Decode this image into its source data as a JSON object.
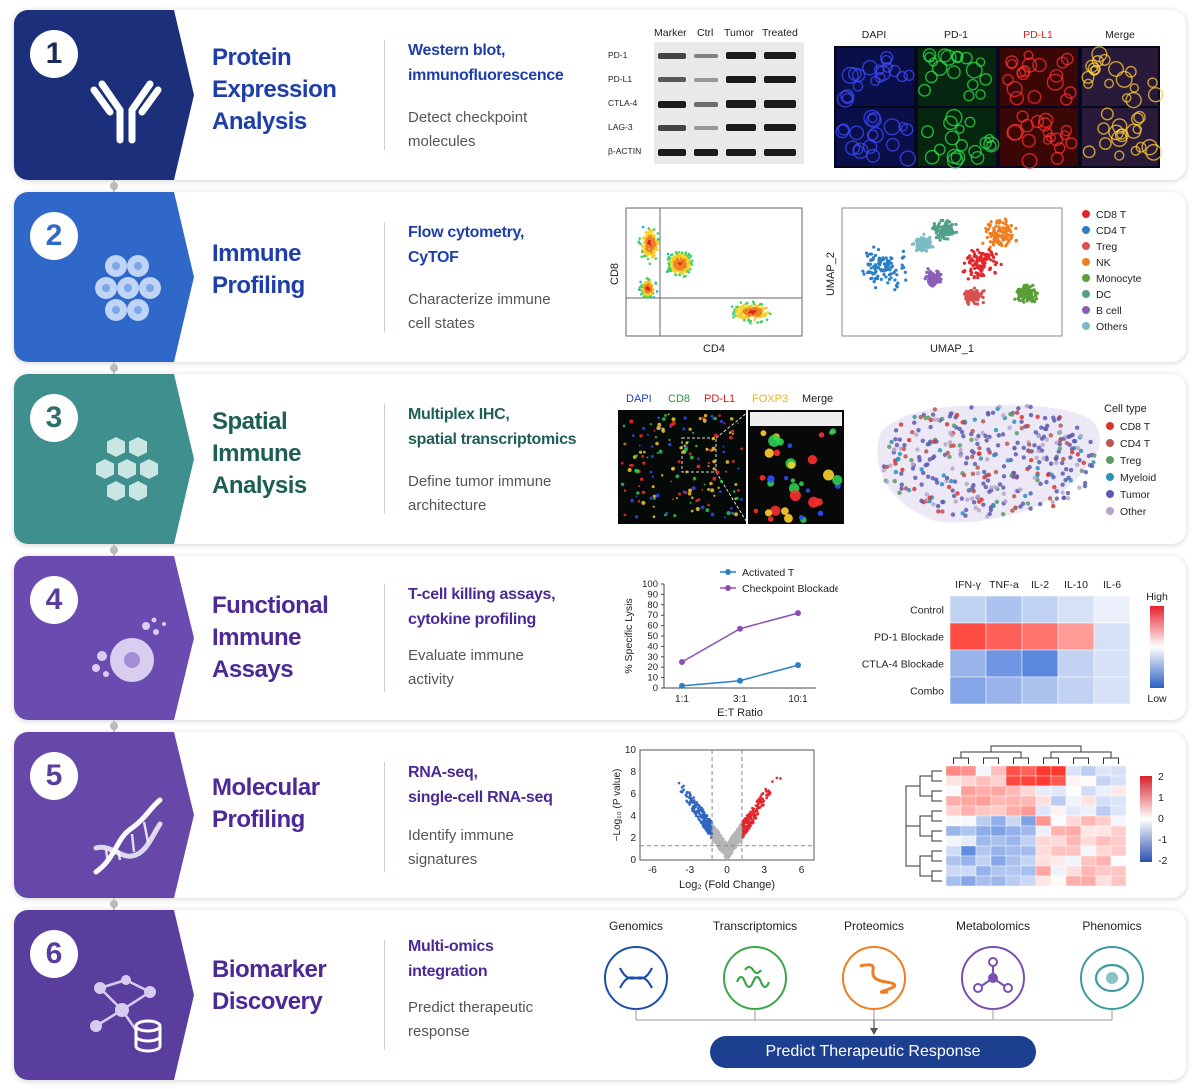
{
  "colors": {
    "row1": "#1b2f7a",
    "row2": "#2f68c8",
    "row3": "#3e8f8d",
    "row4": "#6a4bb0",
    "row5": "#6548a8",
    "row6": "#5a3e9e",
    "blue_text": "#1f3fa8",
    "teal_text": "#1e5f55",
    "purple_text": "#4b2a95"
  },
  "steps": [
    {
      "num": "1",
      "title": [
        "Protein",
        "Expression",
        "Analysis"
      ],
      "method": [
        "Western blot,",
        "immunofluorescence"
      ],
      "desc": [
        "Detect checkpoint",
        "molecules"
      ],
      "icon": "antibody-icon"
    },
    {
      "num": "2",
      "title": [
        "Immune",
        "Profiling"
      ],
      "method": [
        "Flow cytometry,",
        "CyTOF"
      ],
      "desc": [
        "Characterize immune",
        "cell states"
      ],
      "icon": "cell-cluster-icon"
    },
    {
      "num": "3",
      "title": [
        "Spatial",
        "Immune",
        "Analysis"
      ],
      "method": [
        "Multiplex IHC,",
        "spatial transcriptomics"
      ],
      "desc": [
        "Define tumor immune",
        "architecture"
      ],
      "icon": "hexagon-cells-icon"
    },
    {
      "num": "4",
      "title": [
        "Functional",
        "Immune",
        "Assays"
      ],
      "method": [
        "T-cell killing assays,",
        "cytokine profiling"
      ],
      "desc": [
        "Evaluate immune",
        "activity"
      ],
      "icon": "cell-lysis-icon"
    },
    {
      "num": "5",
      "title": [
        "Molecular",
        "Profiling"
      ],
      "method": [
        "RNA-seq,",
        "single-cell RNA-seq"
      ],
      "desc": [
        "Identify immune",
        "signatures"
      ],
      "icon": "dna-icon"
    },
    {
      "num": "6",
      "title": [
        "Biomarker",
        "Discovery"
      ],
      "method": [
        "Multi-omics",
        "integration"
      ],
      "desc": [
        "Predict therapeutic",
        "response"
      ],
      "icon": "network-database-icon"
    }
  ],
  "western": {
    "cols": [
      "Marker",
      "Ctrl",
      "Tumor",
      "Treated"
    ],
    "rows": [
      "PD-1",
      "PD-L1",
      "CTLA-4",
      "LAG-3",
      "β-ACTIN"
    ]
  },
  "if_panel": {
    "labels": [
      "DAPI",
      "PD-1",
      "PD-L1",
      "Merge"
    ],
    "colors": [
      "#222",
      "#222",
      "#e01b1b",
      "#222"
    ]
  },
  "flow": {
    "xlabel": "CD4",
    "ylabel": "CD8"
  },
  "umap": {
    "xlabel": "UMAP_1",
    "ylabel": "UMAP_2",
    "legend": [
      {
        "name": "CD8 T",
        "color": "#e3262b"
      },
      {
        "name": "CD4 T",
        "color": "#2c7fc4"
      },
      {
        "name": "Treg",
        "color": "#d9514f"
      },
      {
        "name": "NK",
        "color": "#ef7d22"
      },
      {
        "name": "Monocyte",
        "color": "#5a9e37"
      },
      {
        "name": "DC",
        "color": "#52a08a"
      },
      {
        "name": "B cell",
        "color": "#8b5fb8"
      },
      {
        "name": "Others",
        "color": "#7bbcc4"
      }
    ]
  },
  "mihc": {
    "labels": [
      "DAPI",
      "CD8",
      "PD-L1",
      "FOXP3",
      "Merge"
    ],
    "colors": [
      "#1e3fbf",
      "#1f9a3a",
      "#e01b1b",
      "#e8b520",
      "#222"
    ]
  },
  "spatial": {
    "legend_title": "Cell type",
    "legend": [
      {
        "name": "CD8 T",
        "color": "#d9352f"
      },
      {
        "name": "CD4 T",
        "color": "#b8574c"
      },
      {
        "name": "Treg",
        "color": "#5e9a62"
      },
      {
        "name": "Myeloid",
        "color": "#2b92b8"
      },
      {
        "name": "Tumor",
        "color": "#5d5ab0"
      },
      {
        "name": "Other",
        "color": "#b9a4c8"
      }
    ]
  },
  "chart_data": [
    {
      "type": "line",
      "title": "",
      "xlabel": "E:T Ratio",
      "ylabel": "% Specific Lysis",
      "categories": [
        "1:1",
        "3:1",
        "10:1"
      ],
      "ylim": [
        0,
        100
      ],
      "yticks": [
        0,
        10,
        20,
        30,
        40,
        50,
        60,
        70,
        80,
        90,
        100
      ],
      "series": [
        {
          "name": "Activated T",
          "color": "#2c7fc4",
          "values": [
            2,
            7,
            22
          ]
        },
        {
          "name": "Checkpoint Blockade",
          "color": "#8b4fb5",
          "values": [
            25,
            57,
            72
          ]
        }
      ]
    },
    {
      "type": "heatmap",
      "columns": [
        "IFN-γ",
        "TNF-a",
        "IL-2",
        "IL-10",
        "IL-6"
      ],
      "rows": [
        "Control",
        "PD-1 Blockade",
        "CTLA-4 Blockade",
        "Combo"
      ],
      "values": [
        [
          -0.3,
          -0.4,
          -0.3,
          -0.2,
          -0.1
        ],
        [
          0.9,
          0.8,
          0.7,
          0.5,
          -0.2
        ],
        [
          -0.5,
          -0.7,
          -0.8,
          -0.3,
          -0.2
        ],
        [
          -0.6,
          -0.5,
          -0.4,
          -0.3,
          -0.2
        ]
      ],
      "legend_high": "High",
      "legend_low": "Low"
    },
    {
      "type": "scatter",
      "title": "",
      "xlabel": "Log₂ (Fold Change)",
      "ylabel": "−Log₁₀ (P value)",
      "xlim": [
        -7,
        7
      ],
      "ylim": [
        0,
        10
      ],
      "xticks": [
        -6,
        -3,
        0,
        3,
        6
      ],
      "yticks": [
        0,
        2,
        4,
        6,
        8,
        10
      ]
    },
    {
      "type": "heatmap",
      "scale_ticks": [
        "2",
        "1",
        "0",
        "-1",
        "-2"
      ]
    }
  ],
  "omics": {
    "items": [
      {
        "name": "Genomics",
        "color": "#1d4fa8",
        "icon": "dna-helix-icon"
      },
      {
        "name": "Transcriptomics",
        "color": "#3aa64a",
        "icon": "rna-strand-icon"
      },
      {
        "name": "Proteomics",
        "color": "#ef7d22",
        "icon": "protein-fold-icon"
      },
      {
        "name": "Metabolomics",
        "color": "#7a4fb0",
        "icon": "molecule-icon"
      },
      {
        "name": "Phenomics",
        "color": "#3c9aa0",
        "icon": "cell-icon"
      }
    ],
    "result": "Predict Therapeutic Response"
  }
}
